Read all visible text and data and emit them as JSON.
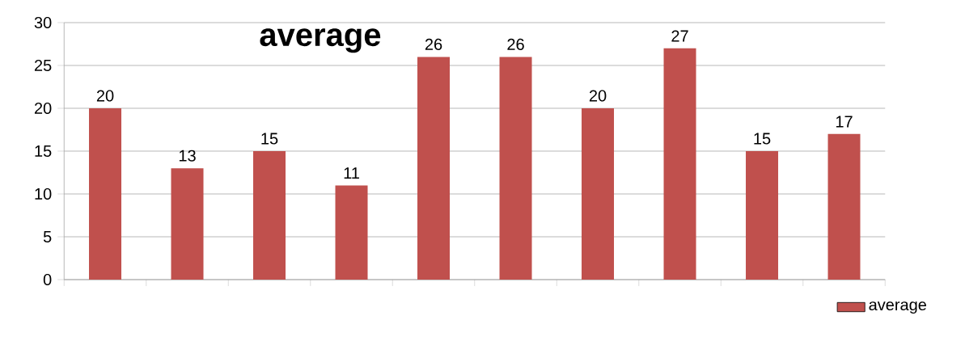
{
  "chart_data": {
    "type": "bar",
    "title": "average",
    "categories": [
      null,
      null,
      null,
      null,
      null,
      null,
      null,
      null,
      null,
      null
    ],
    "series": [
      {
        "name": "average",
        "color": "#c0504d",
        "values": [
          20,
          13,
          15,
          11,
          26,
          26,
          20,
          27,
          15,
          17
        ]
      }
    ],
    "ylim": [
      0,
      30
    ],
    "yticks": [
      0,
      5,
      10,
      15,
      20,
      25,
      30
    ],
    "grid": "y",
    "legend": "bottom right",
    "data_labels": true
  }
}
